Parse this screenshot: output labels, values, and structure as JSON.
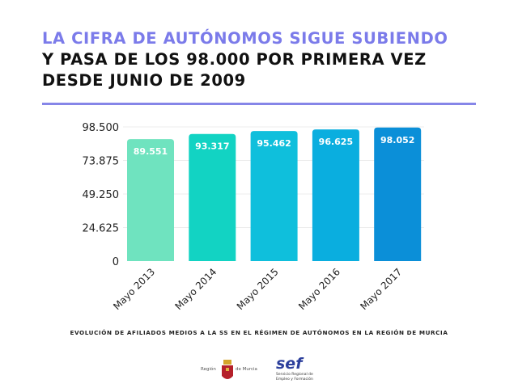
{
  "title": {
    "line1": "LA CIFRA DE AUTÓNOMOS SIGUE SUBIENDO",
    "line2": "Y PASA DE LOS 98.000 POR PRIMERA VEZ",
    "line3": "DESDE JUNIO DE 2009",
    "accent_color": "#7b7bea"
  },
  "chart_data": {
    "type": "bar",
    "categories": [
      "Mayo 2013",
      "Mayo 2014",
      "Mayo 2015",
      "Mayo 2016",
      "Mayo 2017"
    ],
    "values": [
      89551,
      93317,
      95462,
      96625,
      98052
    ],
    "value_labels": [
      "89.551",
      "93.317",
      "95.462",
      "96.625",
      "98.052"
    ],
    "ylim": [
      0,
      98500
    ],
    "yticks": [
      0,
      24625,
      49250,
      73875,
      98500
    ],
    "ytick_labels": [
      "0",
      "24.625",
      "49.250",
      "73.875",
      "98.500"
    ],
    "grid": true,
    "bar_colors": [
      "#6fe3bf",
      "#12d3c3",
      "#0fbfdc",
      "#0aaedf",
      "#0b8fd8"
    ],
    "caption": "EVOLUCIÓN DE AFILIADOS MEDIOS A LA SS EN EL RÉGIMEN DE AUTÓNOMOS EN LA REGIÓN DE MURCIA"
  },
  "logos": {
    "murcia_left": "Región",
    "murcia_right": "de Murcia",
    "sef": "sef",
    "sef_line1": "Servicio Regional de",
    "sef_line2": "Empleo y Formación"
  }
}
